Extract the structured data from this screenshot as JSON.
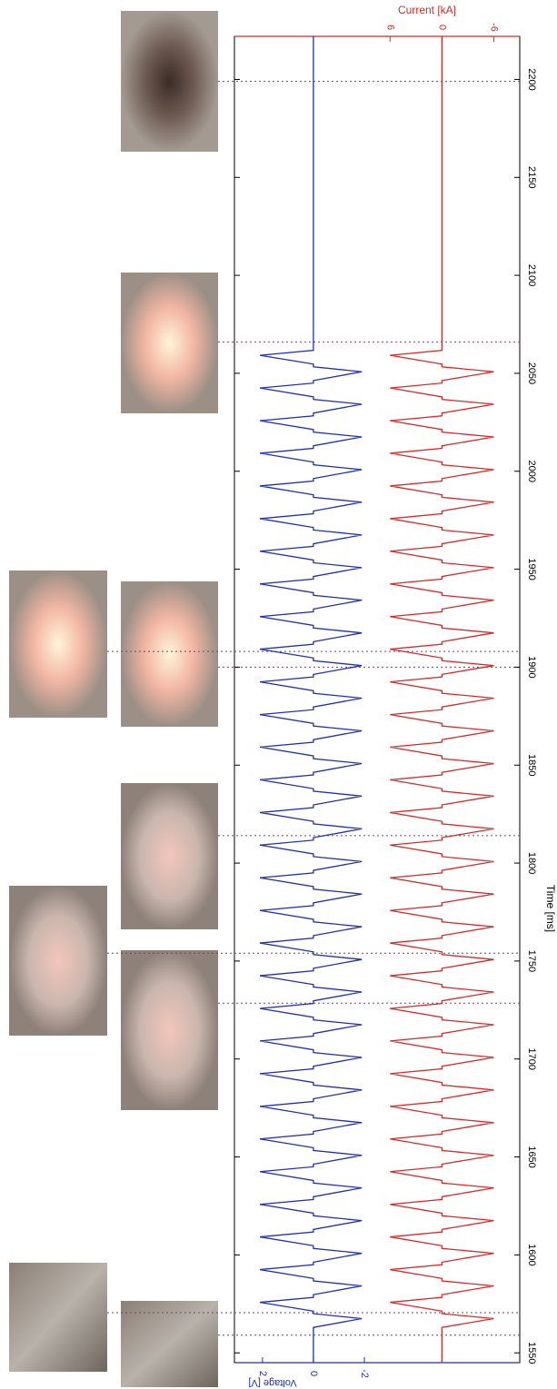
{
  "chart_data": {
    "type": "line",
    "x_label": "Time [ms]",
    "y_label": "Voltage [V]",
    "y2_label": "Current [kA]",
    "xlim": [
      1545,
      2222
    ],
    "xticks": [
      1550,
      1600,
      1650,
      1700,
      1750,
      1800,
      1850,
      1900,
      1950,
      2000,
      2050,
      2100,
      2150,
      2200
    ],
    "ylim": [
      3.1,
      -8.1
    ],
    "yticks": [
      2,
      0,
      -2
    ],
    "y2lim": [
      24,
      -9
    ],
    "y2ticks": [
      6,
      0,
      -6
    ],
    "frame_times": [
      1559,
      1570.5,
      1728.5,
      1754,
      1814,
      1900,
      1908,
      2066,
      2199
    ],
    "x": [
      1545,
      1563,
      1567.5,
      1570,
      1571.3,
      1575.8,
      1578.3,
      1579.7,
      1584.2,
      1586.7,
      1588,
      1592.5,
      1595,
      1596.3,
      1600.8,
      1603.3,
      1604.7,
      1609.2,
      1611.7,
      1613,
      1617.5,
      1620,
      1621.3,
      1625.8,
      1628.3,
      1629.7,
      1634.2,
      1636.7,
      1638,
      1642.5,
      1645,
      1646.3,
      1650.8,
      1653.3,
      1654.7,
      1659.2,
      1661.7,
      1663,
      1667.5,
      1670,
      1671.3,
      1675.8,
      1678.3,
      1679.7,
      1684.2,
      1686.7,
      1688,
      1692.5,
      1695,
      1696.3,
      1700.8,
      1703.3,
      1704.7,
      1709.2,
      1711.7,
      1713,
      1717.5,
      1720,
      1721.3,
      1725.8,
      1728.3,
      1729.7,
      1734.2,
      1736.7,
      1738,
      1742.5,
      1745,
      1746.3,
      1750.8,
      1753.3,
      1754.7,
      1759.2,
      1761.7,
      1763,
      1767.5,
      1770,
      1771.3,
      1775.8,
      1778.3,
      1779.7,
      1784.2,
      1786.7,
      1788,
      1792.5,
      1795,
      1796.3,
      1800.8,
      1803.3,
      1804.7,
      1809.2,
      1811.7,
      1813,
      1817.5,
      1820,
      1821.3,
      1825.8,
      1828.3,
      1829.7,
      1834.2,
      1836.7,
      1838,
      1842.5,
      1845,
      1846.3,
      1850.8,
      1853.3,
      1854.7,
      1859.2,
      1861.7,
      1863,
      1867.5,
      1870,
      1871.3,
      1875.8,
      1878.3,
      1879.7,
      1884.2,
      1886.7,
      1888,
      1892.5,
      1895,
      1896.3,
      1900.8,
      1903.3,
      1904.7,
      1909.2,
      1911.7,
      1913,
      1917.5,
      1920,
      1921.3,
      1925.8,
      1928.3,
      1929.7,
      1934.2,
      1936.7,
      1938,
      1942.5,
      1945,
      1946.3,
      1950.8,
      1953.3,
      1954.7,
      1959.2,
      1961.7,
      1963,
      1967.5,
      1970,
      1971.3,
      1975.8,
      1978.3,
      1979.7,
      1984.2,
      1986.7,
      1988,
      1992.5,
      1995,
      1996.3,
      2000.8,
      2003.3,
      2004.7,
      2009.2,
      2011.7,
      2013,
      2017.5,
      2020,
      2021.3,
      2025.8,
      2028.3,
      2029.7,
      2034.2,
      2036.7,
      2038,
      2042.5,
      2045,
      2046.3,
      2050.8,
      2053.3,
      2054.7,
      2059.2,
      2061.7,
      2222
    ],
    "series": [
      {
        "color": "#1f2fb0",
        "values": [
          0,
          0,
          -1.9,
          0,
          0,
          2.1,
          0,
          0,
          -1.9,
          0,
          0,
          2.1,
          0,
          0,
          -1.9,
          0,
          0,
          2.1,
          0,
          0,
          -1.9,
          0,
          0,
          2.1,
          0,
          0,
          -1.9,
          0,
          0,
          2.1,
          0,
          0,
          -1.9,
          0,
          0,
          2.1,
          0,
          0,
          -1.9,
          0,
          0,
          2.1,
          0,
          0,
          -1.9,
          0,
          0,
          2.1,
          0,
          0,
          -1.9,
          0,
          0,
          2.1,
          0,
          0,
          -1.9,
          0,
          0,
          2.1,
          0,
          0,
          -1.9,
          0,
          0,
          2.1,
          0,
          0,
          -1.9,
          0,
          0,
          2.1,
          0,
          0,
          -1.9,
          0,
          0,
          2.1,
          0,
          0,
          -1.9,
          0,
          0,
          2.1,
          0,
          0,
          -1.9,
          0,
          0,
          2.1,
          0,
          0,
          -1.9,
          0,
          0,
          2.1,
          0,
          0,
          -1.9,
          0,
          0,
          2.1,
          0,
          0,
          -1.9,
          0,
          0,
          2.1,
          0,
          0,
          -1.9,
          0,
          0,
          2.1,
          0,
          0,
          -1.9,
          0,
          0,
          2.1,
          0,
          0,
          -1.9,
          0,
          0,
          2.1,
          0,
          0,
          -1.9,
          0,
          0,
          2.1,
          0,
          0,
          -1.9,
          0,
          0,
          2.1,
          0,
          0,
          -1.9,
          0,
          0,
          2.1,
          0,
          0,
          -1.9,
          0,
          0,
          2.1,
          0,
          0,
          -1.9,
          0,
          0,
          2.1,
          0,
          0,
          -1.9,
          0,
          0,
          2.1,
          0,
          0,
          -1.9,
          0,
          0,
          2.1,
          0,
          0,
          -1.9,
          0,
          0,
          2.1,
          0,
          0,
          -1.9,
          0,
          0,
          2.1,
          0,
          0
        ]
      },
      {
        "color": "#d42a2a",
        "axis": "y2",
        "values": [
          0,
          0,
          -6,
          0,
          0,
          6,
          0,
          0,
          -6,
          0,
          0,
          6,
          0,
          0,
          -6,
          0,
          0,
          6,
          0,
          0,
          -6,
          0,
          0,
          6,
          0,
          0,
          -6,
          0,
          0,
          6,
          0,
          0,
          -6,
          0,
          0,
          6,
          0,
          0,
          -6,
          0,
          0,
          6,
          0,
          0,
          -6,
          0,
          0,
          6,
          0,
          0,
          -6,
          0,
          0,
          6,
          0,
          0,
          -6,
          0,
          0,
          6,
          0,
          0,
          -6,
          0,
          0,
          6,
          0,
          0,
          -6,
          0,
          0,
          6,
          0,
          0,
          -6,
          0,
          0,
          6,
          0,
          0,
          -6,
          0,
          0,
          6,
          0,
          0,
          -6,
          0,
          0,
          6,
          0,
          0,
          -6,
          0,
          0,
          6,
          0,
          0,
          -6,
          0,
          0,
          6,
          0,
          0,
          -6,
          0,
          0,
          6,
          0,
          0,
          -6,
          0,
          0,
          6,
          0,
          0,
          -6,
          0,
          0,
          6,
          0,
          0,
          -6,
          0,
          0,
          6,
          0,
          0,
          -6,
          0,
          0,
          6,
          0,
          0,
          -6,
          0,
          0,
          6,
          0,
          0,
          -6,
          0,
          0,
          6,
          0,
          0,
          -6,
          0,
          0,
          6,
          0,
          0,
          -6,
          0,
          0,
          6,
          0,
          0,
          -6,
          0,
          0,
          6,
          0,
          0,
          -6,
          0,
          0,
          6,
          0,
          0,
          -6,
          0,
          0,
          6,
          0,
          0,
          -6,
          0,
          0,
          6,
          0,
          0
        ]
      }
    ]
  }
}
